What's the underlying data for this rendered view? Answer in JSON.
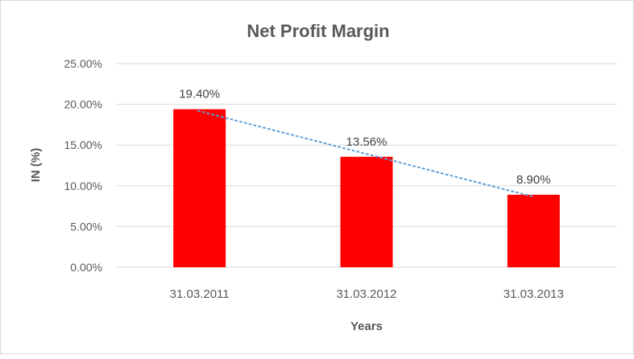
{
  "chart_data": {
    "type": "bar",
    "title": "Net Profit Margin",
    "xlabel": "Years",
    "ylabel": "IN (%)",
    "categories": [
      "31.03.2011",
      "31.03.2012",
      "31.03.2013"
    ],
    "values": [
      19.4,
      13.56,
      8.9
    ],
    "data_labels": [
      "19.40%",
      "13.56%",
      "8.90%"
    ],
    "ylim": [
      0,
      25
    ],
    "yticks": [
      0,
      5,
      10,
      15,
      20,
      25
    ],
    "ytick_labels": [
      "0.00%",
      "5.00%",
      "10.00%",
      "15.00%",
      "20.00%",
      "25.00%"
    ],
    "grid": true,
    "legend": "none",
    "trendline": {
      "type": "linear",
      "style": "dotted",
      "color": "#5b9bd5"
    },
    "bar_color": "#ff0000"
  }
}
